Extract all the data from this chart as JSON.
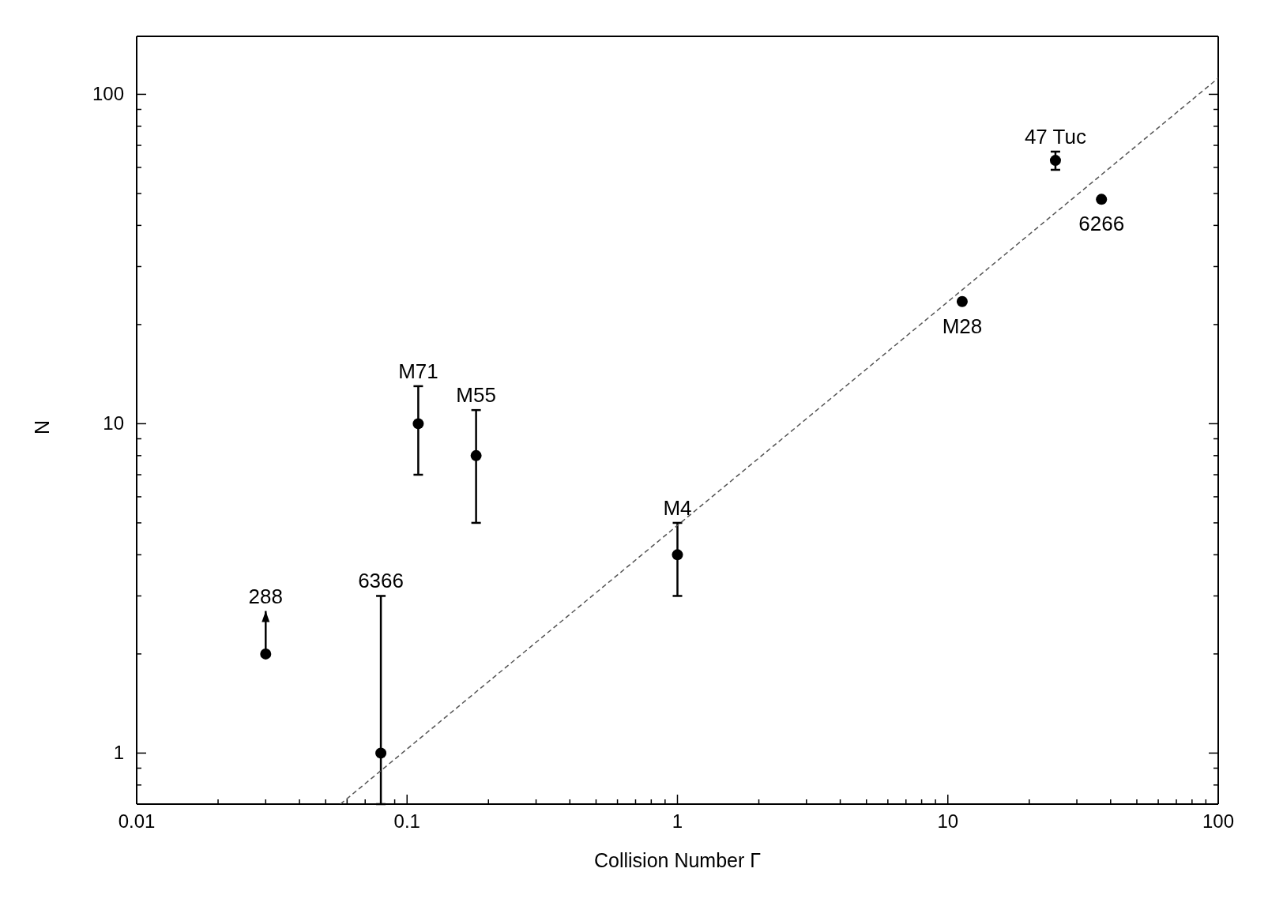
{
  "chart_data": {
    "type": "scatter",
    "xlabel": "Collision Number Γ",
    "ylabel": "N",
    "log": "xy",
    "grid": false,
    "legend": false,
    "marker": "circle",
    "xlim": [
      0.01,
      100
    ],
    "ylim": [
      0.7,
      150
    ],
    "xticks": [
      0.01,
      {
        "value": 0.02,
        "label": null
      },
      {
        "value": 0.03,
        "label": null
      },
      {
        "value": 0.04,
        "label": null
      },
      {
        "value": 0.05,
        "label": null
      },
      {
        "value": 0.06,
        "label": null
      },
      {
        "value": 0.07,
        "label": null
      },
      {
        "value": 0.08,
        "label": null
      },
      {
        "value": 0.09,
        "label": null
      },
      0.1,
      {
        "value": 0.2,
        "label": null
      },
      {
        "value": 0.3,
        "label": null
      },
      {
        "value": 0.4,
        "label": null
      },
      {
        "value": 0.5,
        "label": null
      },
      {
        "value": 0.6,
        "label": null
      },
      {
        "value": 0.7,
        "label": null
      },
      {
        "value": 0.8,
        "label": null
      },
      {
        "value": 0.9,
        "label": null
      },
      1,
      {
        "value": 2,
        "label": null
      },
      {
        "value": 3,
        "label": null
      },
      {
        "value": 4,
        "label": null
      },
      {
        "value": 5,
        "label": null
      },
      {
        "value": 6,
        "label": null
      },
      {
        "value": 7,
        "label": null
      },
      {
        "value": 8,
        "label": null
      },
      {
        "value": 9,
        "label": null
      },
      10,
      {
        "value": 20,
        "label": null
      },
      {
        "value": 30,
        "label": null
      },
      {
        "value": 40,
        "label": null
      },
      {
        "value": 50,
        "label": null
      },
      {
        "value": 60,
        "label": null
      },
      {
        "value": 70,
        "label": null
      },
      {
        "value": 80,
        "label": null
      },
      {
        "value": 90,
        "label": null
      },
      100
    ],
    "yticks": [
      {
        "value": 0.8,
        "label": null
      },
      {
        "value": 0.9,
        "label": null
      },
      1,
      {
        "value": 2,
        "label": null
      },
      {
        "value": 3,
        "label": null
      },
      {
        "value": 4,
        "label": null
      },
      {
        "value": 5,
        "label": null
      },
      {
        "value": 6,
        "label": null
      },
      {
        "value": 7,
        "label": null
      },
      {
        "value": 8,
        "label": null
      },
      {
        "value": 9,
        "label": null
      },
      10,
      {
        "value": 20,
        "label": null
      },
      {
        "value": 30,
        "label": null
      },
      {
        "value": 40,
        "label": null
      },
      {
        "value": 50,
        "label": null
      },
      {
        "value": 60,
        "label": null
      },
      {
        "value": 70,
        "label": null
      },
      {
        "value": 80,
        "label": null
      },
      {
        "value": 90,
        "label": null
      },
      100
    ],
    "series": [
      {
        "color": "#000000",
        "x": [
          0.03,
          0.08,
          0.11,
          0.18,
          1,
          11.3,
          25,
          37
        ],
        "values": [
          2,
          1,
          10,
          8,
          4,
          23.5,
          63,
          48
        ],
        "errors": [
          [
            2,
            2.7
          ],
          [
            0.7,
            3
          ],
          3,
          3,
          1,
          null,
          4,
          null
        ]
      },
      {
        "type": "line",
        "color": "#555555",
        "line_style": "dashed",
        "marker": "none",
        "x": [
          0.0567,
          100
        ],
        "values": [
          0.7,
          112
        ]
      }
    ],
    "annotations": [
      {
        "text": "288",
        "x": 0.03,
        "y": 2.7
      },
      {
        "text": "6366",
        "x": 0.08,
        "y": 3
      },
      {
        "text": "M71",
        "x": 0.11,
        "y": 13
      },
      {
        "text": "M55",
        "x": 0.18,
        "y": 11
      },
      {
        "text": "M4",
        "x": 1,
        "y": 5
      },
      {
        "text": "M28",
        "x": 11.3,
        "y": 23.5
      },
      {
        "text": "47 Tuc",
        "x": 25,
        "y": 67
      },
      {
        "text": "6266",
        "x": 37,
        "y": 48
      }
    ]
  }
}
